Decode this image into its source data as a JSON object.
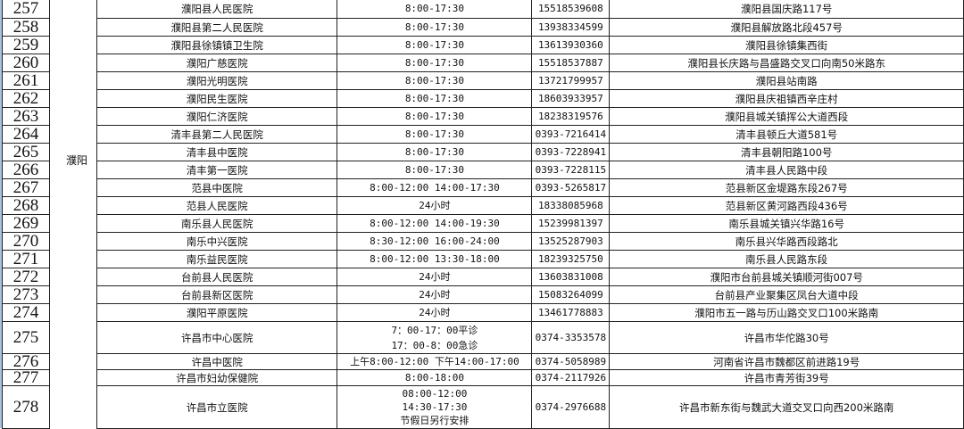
{
  "city_groups": [
    {
      "city": "濮阳",
      "first": 0,
      "span": 18
    },
    {
      "city": "",
      "first": 18,
      "span": 4
    }
  ],
  "rows": [
    {
      "no": "257",
      "name": "濮阳县人民医院",
      "hours": [
        "8:00-17:30"
      ],
      "phone": "15518539608",
      "address": "濮阳县国庆路117号"
    },
    {
      "no": "258",
      "name": "濮阳县第二人民医院",
      "hours": [
        "8:00-17:30"
      ],
      "phone": "13938334599",
      "address": "濮阳县解放路北段457号"
    },
    {
      "no": "259",
      "name": "濮阳县徐镇镇卫生院",
      "hours": [
        "8:00-17:30"
      ],
      "phone": "13613930360",
      "address": "濮阳县徐镇集西街"
    },
    {
      "no": "260",
      "name": "濮阳广慈医院",
      "hours": [
        "8:00-17:30"
      ],
      "phone": "15518537887",
      "address": "濮阳县长庆路与昌盛路交叉口向南50米路东"
    },
    {
      "no": "261",
      "name": "濮阳光明医院",
      "hours": [
        "8:00-17:30"
      ],
      "phone": "13721799957",
      "address": "濮阳县站南路"
    },
    {
      "no": "262",
      "name": "濮阳民生医院",
      "hours": [
        "8:00-17:30"
      ],
      "phone": "18603933957",
      "address": "濮阳县庆祖镇西辛庄村"
    },
    {
      "no": "263",
      "name": "濮阳仁济医院",
      "hours": [
        "8:00-17:30"
      ],
      "phone": "18238319576",
      "address": "濮阳县城关镇挥公大道西段"
    },
    {
      "no": "264",
      "name": "清丰县第二人民医院",
      "hours": [
        "8:00-17:30"
      ],
      "phone": "0393-7216414",
      "address": "清丰县顿丘大道581号"
    },
    {
      "no": "265",
      "name": "清丰县中医院",
      "hours": [
        "8:00-17:30"
      ],
      "phone": "0393-7228941",
      "address": "清丰县朝阳路100号"
    },
    {
      "no": "266",
      "name": "清丰第一医院",
      "hours": [
        "8:00-17:30"
      ],
      "phone": "0393-7228115",
      "address": "清丰县人民路中段"
    },
    {
      "no": "267",
      "name": "范县中医院",
      "hours": [
        "8:00-12:00 14:00-17:30"
      ],
      "phone": "0393-5265817",
      "address": "范县新区金堤路东段267号"
    },
    {
      "no": "268",
      "name": "范县人民医院",
      "hours": [
        "24小时"
      ],
      "phone": "18338085968",
      "address": "范县新区黄河路西段436号"
    },
    {
      "no": "269",
      "name": "南乐县人民医院",
      "hours": [
        "8:00-12:00  14:00-19:30"
      ],
      "phone": "15239981397",
      "address": "南乐县城关镇兴华路16号"
    },
    {
      "no": "270",
      "name": "南乐中兴医院",
      "hours": [
        "8:30-12:00  16:00-24:00"
      ],
      "phone": "13525287903",
      "address": "南乐县兴华路西段路北"
    },
    {
      "no": "271",
      "name": "南乐益民医院",
      "hours": [
        "8:00-12:00  13:30-18:00"
      ],
      "phone": "18239325750",
      "address": "南乐县人民路东段"
    },
    {
      "no": "272",
      "name": "台前县人民医院",
      "hours": [
        "24小时"
      ],
      "phone": "13603831008",
      "address": "濮阳市台前县城关镇顺河街007号"
    },
    {
      "no": "273",
      "name": "台前县新区医院",
      "hours": [
        "24小时"
      ],
      "phone": "15083264099",
      "address": "台前县产业聚集区凤台大道中段"
    },
    {
      "no": "274",
      "name": "濮阳平原医院",
      "hours": [
        "24小时"
      ],
      "phone": "13461778883",
      "address": "濮阳市五一路与历山路交叉口100米路南"
    },
    {
      "no": "275",
      "name": "许昌市中心医院",
      "hours": [
        "7：00-17：00平诊",
        "17：00-8：00急诊"
      ],
      "phone": "0374-3353578",
      "address": "许昌市华佗路30号"
    },
    {
      "no": "276",
      "name": "许昌中医院",
      "hours": [
        "上午8:00-12:00 下午14:00-17:00"
      ],
      "phone": "0374-5058989",
      "address": "河南省许昌市魏都区前进路19号"
    },
    {
      "no": "277",
      "name": "许昌市妇幼保健院",
      "hours": [
        "8:00-18:00"
      ],
      "phone": "0374-2117926",
      "address": "许昌市青芳街39号"
    },
    {
      "no": "278",
      "name": "许昌市立医院",
      "hours": [
        "08:00-12:00",
        "14:30-17:30",
        "节假日另行安排"
      ],
      "phone": "0374-2976688",
      "address": "许昌市新东街与魏武大道交叉口向西200米路南"
    }
  ]
}
